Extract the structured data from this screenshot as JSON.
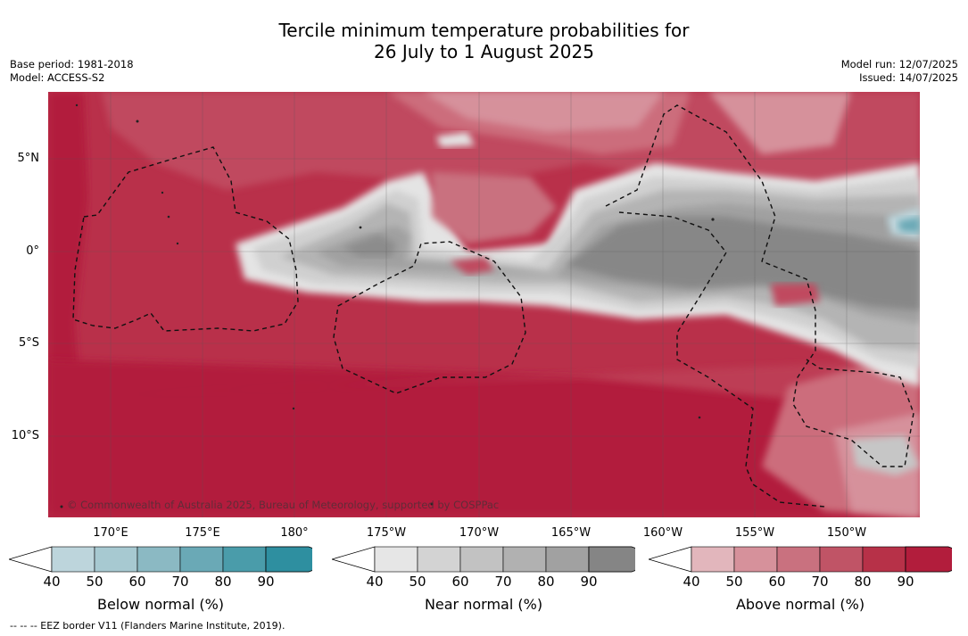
{
  "title_line1": "Tercile minimum temperature probabilities for",
  "title_line2": "26 July to 1 August 2025",
  "base_period": "Base period: 1981-2018",
  "model": "Model: ACCESS-S2",
  "model_run": "Model run: 12/07/2025",
  "issued": "Issued: 14/07/2025",
  "lat_labels": [
    "5°N",
    "0°",
    "5°S",
    "10°S"
  ],
  "lon_labels": [
    "170°E",
    "175°E",
    "180°",
    "175°W",
    "170°W",
    "165°W",
    "160°W",
    "155°W",
    "150°W"
  ],
  "copyright": "© Commonwealth of Australia 2025, Bureau of Meteorology, supported by COSPPac",
  "colorbars": [
    {
      "label": "Below normal (%)",
      "ticks": [
        "40",
        "50",
        "60",
        "70",
        "80",
        "90"
      ],
      "colors": [
        "#bdd5dc",
        "#a7c9d1",
        "#8bb9c3",
        "#6aa9b6",
        "#4a9caa",
        "#2e8fa0"
      ]
    },
    {
      "label": "Near normal (%)",
      "ticks": [
        "40",
        "50",
        "60",
        "70",
        "80",
        "90"
      ],
      "colors": [
        "#e6e6e6",
        "#d3d3d3",
        "#c2c2c2",
        "#b1b1b1",
        "#a1a1a1",
        "#858585"
      ]
    },
    {
      "label": "Above normal (%)",
      "ticks": [
        "40",
        "50",
        "60",
        "70",
        "80",
        "90"
      ],
      "colors": [
        "#e2b6bc",
        "#d6919b",
        "#c9717f",
        "#c05466",
        "#b73148",
        "#b21d3c"
      ]
    }
  ],
  "footnote": "-- -- -- EEZ border V11 (Flanders Marine Institute, 2019)."
}
